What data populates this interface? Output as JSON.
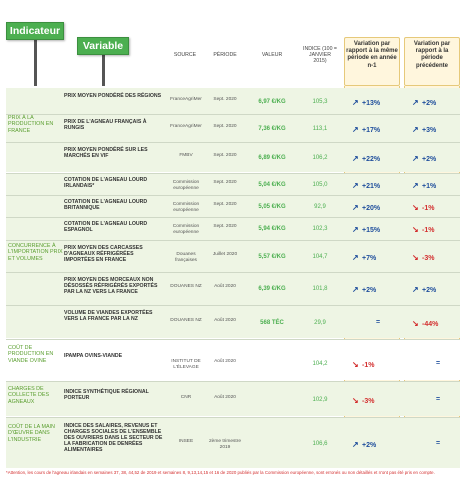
{
  "signs": {
    "indicateur": "Indicateur",
    "variable": "Variable"
  },
  "headers": {
    "source": "SOURCE",
    "periode": "PÉRIODE",
    "valeur": "VALEUR",
    "indice": "INDICE (100 = JANVIER 2015)",
    "var_annee": "Variation par rapport à la même période en année n-1",
    "var_prec": "Variation par rapport à la période précédente"
  },
  "categories": {
    "prix": "PRIX À LA PRODUCTION EN FRANCE",
    "concurrence": "CONCURRENCE À L'IMPORTATION PRIX ET VOLUMES",
    "cout": "COÛT DE PRODUCTION EN VIANDE OVINE",
    "charges": "CHARGES DE COLLECTE DES AGNEAUX",
    "main": "COÛT DE LA MAIN D'ŒUVRE DANS L'INDUSTRIE"
  },
  "rows": [
    {
      "variable": "PRIX MOYEN PONDÉRÉ DES RÉGIONS",
      "source": "FranceAgriMer",
      "periode": "Sept. 2020",
      "valeur": "6,97 €/KG",
      "indice": "105,3",
      "var_annee": "+13%",
      "var_prec": "+2%",
      "dir_annee": "up",
      "dir_prec": "up"
    },
    {
      "variable": "PRIX DE L'AGNEAU FRANÇAIS À RUNGIS",
      "source": "FranceAgriMer",
      "periode": "Sept. 2020",
      "valeur": "7,36 €/KG",
      "indice": "113,1",
      "var_annee": "+17%",
      "var_prec": "+3%",
      "dir_annee": "up",
      "dir_prec": "up"
    },
    {
      "variable": "PRIX MOYEN PONDÉRÉ SUR LES MARCHÉS EN VIF",
      "source": "FMBV",
      "periode": "Sept. 2020",
      "valeur": "6,89 €/KG",
      "indice": "106,2",
      "var_annee": "+22%",
      "var_prec": "+2%",
      "dir_annee": "up",
      "dir_prec": "up"
    },
    {
      "variable": "COTATION DE L'AGNEAU LOURD IRLANDAIS*",
      "source": "Commission européenne",
      "periode": "Sept. 2020",
      "valeur": "5,04 €/KG",
      "indice": "105,0",
      "var_annee": "+21%",
      "var_prec": "+1%",
      "dir_annee": "up",
      "dir_prec": "up"
    },
    {
      "variable": "COTATION DE L'AGNEAU LOURD BRITANNIQUE",
      "source": "Commission européenne",
      "periode": "Sept. 2020",
      "valeur": "5,05 €/KG",
      "indice": "92,9",
      "var_annee": "+20%",
      "var_prec": "-1%",
      "dir_annee": "up",
      "dir_prec": "down"
    },
    {
      "variable": "COTATION DE L'AGNEAU LOURD ESPAGNOL",
      "source": "Commission européenne",
      "periode": "Sept. 2020",
      "valeur": "5,94 €/KG",
      "indice": "102,3",
      "var_annee": "+15%",
      "var_prec": "-1%",
      "dir_annee": "up",
      "dir_prec": "down"
    },
    {
      "variable": "PRIX MOYEN DES CARCASSES D'AGNEAUX RÉFRIGÉRÉES IMPORTÉES EN FRANCE",
      "source": "Douanes françaises",
      "periode": "Juillet 2020",
      "valeur": "5,57 €/KG",
      "indice": "104,7",
      "var_annee": "+7%",
      "var_prec": "-3%",
      "dir_annee": "up",
      "dir_prec": "down"
    },
    {
      "variable": "PRIX MOYEN DES MORCEAUX NON DÉSOSSÉS RÉFRIGÉRÉS EXPORTÉS PAR LA NZ VERS LA FRANCE",
      "source": "DOUANES NZ",
      "periode": "Août 2020",
      "valeur": "6,39 €/KG",
      "indice": "101,8",
      "var_annee": "+2%",
      "var_prec": "+2%",
      "dir_annee": "up",
      "dir_prec": "up"
    },
    {
      "variable": "VOLUME DE VIANDES EXPORTÉES VERS LA FRANCE PAR LA NZ",
      "source": "DOUANES NZ",
      "periode": "Août 2020",
      "valeur": "568 TÉC",
      "indice": "29,9",
      "var_annee": "=",
      "var_prec": "-44%",
      "dir_annee": "eq",
      "dir_prec": "down"
    },
    {
      "variable": "IPAMPA OVINS-VIANDE",
      "source": "INSTITUT DE L'ÉLEVAGE",
      "periode": "Août 2020",
      "valeur": "",
      "indice": "104,2",
      "var_annee": "-1%",
      "var_prec": "=",
      "dir_annee": "down",
      "dir_prec": "eq"
    },
    {
      "variable": "INDICE SYNTHÉTIQUE RÉGIONAL PORTEUR",
      "source": "CNR",
      "periode": "Août 2020",
      "valeur": "",
      "indice": "102,9",
      "var_annee": "-3%",
      "var_prec": "=",
      "dir_annee": "down",
      "dir_prec": "eq"
    },
    {
      "variable": "INDICE DES SALAIRES, REVENUS ET CHARGES SOCIALES DE L'ENSEMBLE DES OUVRIERS DANS LE SECTEUR DE LA FABRICATION DE DENRÉES ALIMENTAIRES",
      "source": "INSEE",
      "periode": "2ème trimestre 2019",
      "valeur": "",
      "indice": "106,6",
      "var_annee": "+2%",
      "var_prec": "=",
      "dir_annee": "up",
      "dir_prec": "eq"
    }
  ],
  "footer": "*Attention, les cours de l'agneau irlandais en semaines 37, 38, 44,52 de 2019 et semaines 8, 9,13,14,15 et 16 de 2020 publiés par la Commission européenne, sont erronés ou non détaillés et n'ont pas été pris en compte."
}
